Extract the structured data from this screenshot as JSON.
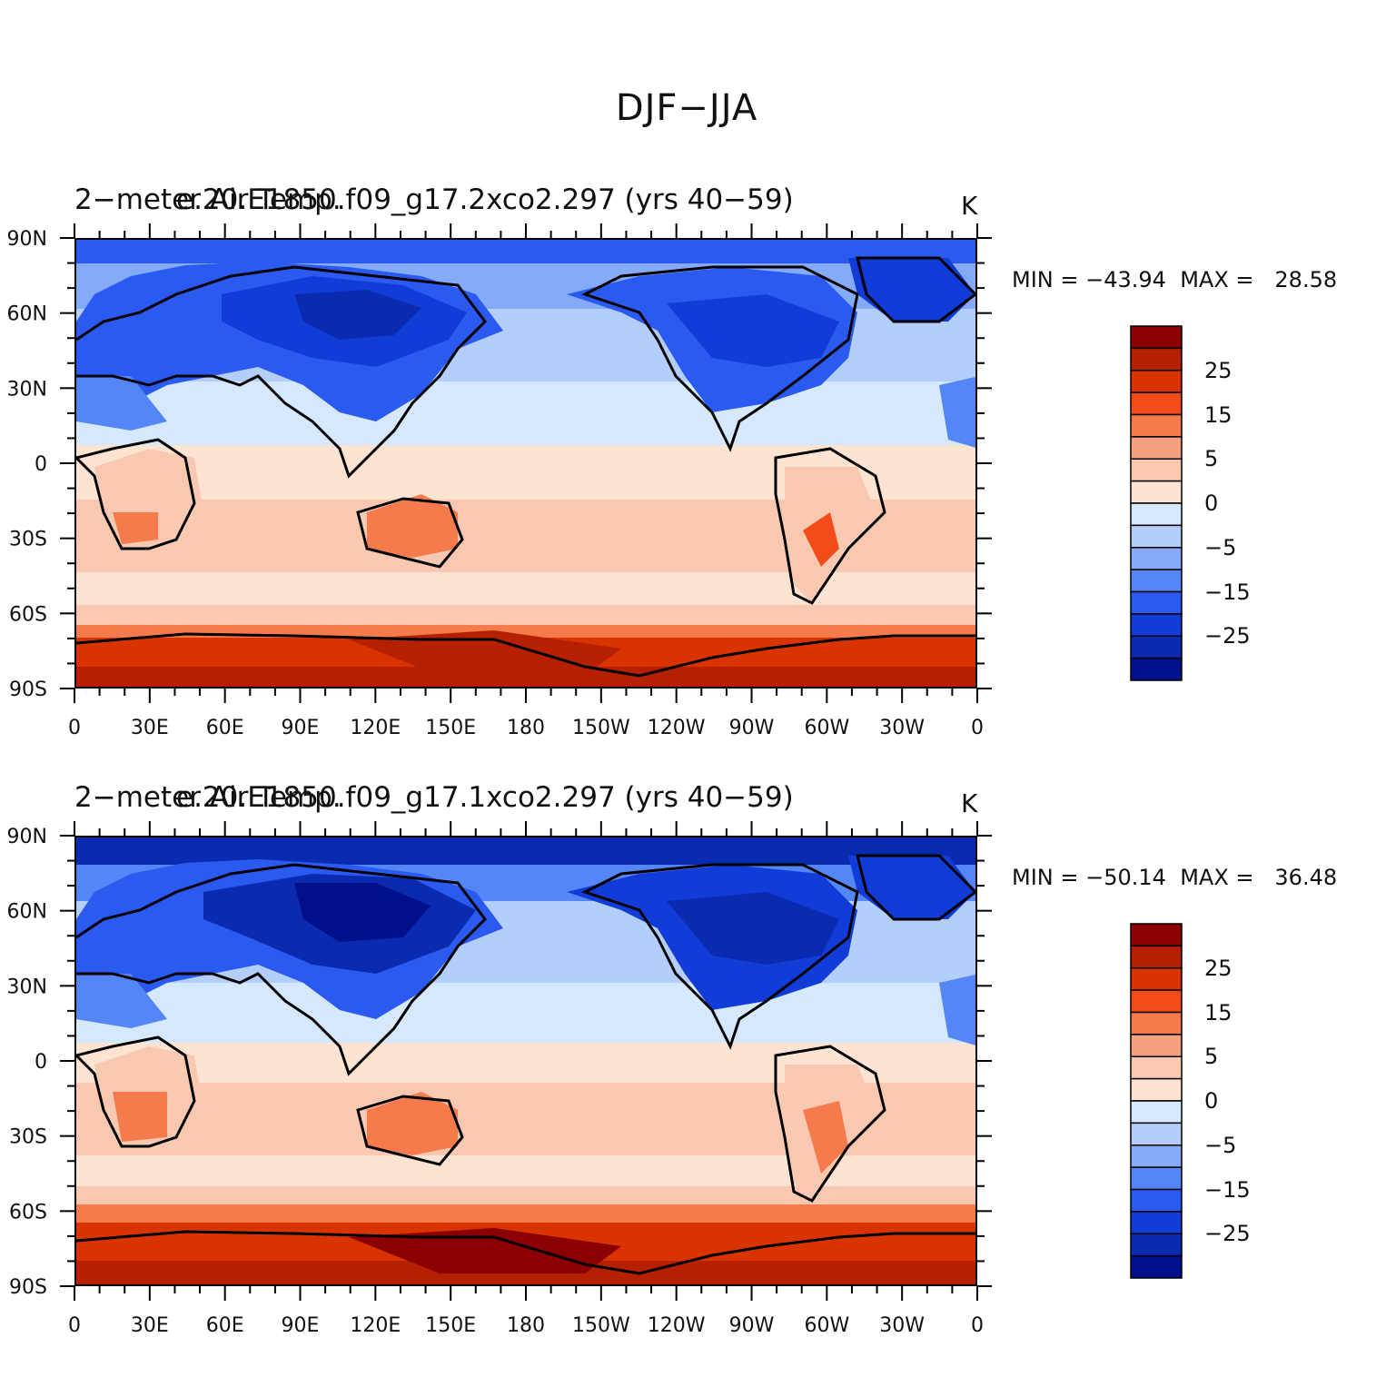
{
  "figure": {
    "title": "DJF−JJA"
  },
  "axes": {
    "lat_ticks": [
      "90N",
      "60N",
      "30N",
      "0",
      "30S",
      "60S",
      "90S"
    ],
    "lon_ticks": [
      "0",
      "30E",
      "60E",
      "90E",
      "120E",
      "150E",
      "180",
      "150W",
      "120W",
      "90W",
      "60W",
      "30W",
      "0"
    ]
  },
  "colorbar": {
    "levels": [
      "25",
      "15",
      "5",
      "0",
      "−5",
      "−15",
      "−25"
    ],
    "colors_top_to_bottom": [
      "#8b0000",
      "#b52000",
      "#d93300",
      "#f24c1a",
      "#f57a4c",
      "#f5a07e",
      "#f9c8b0",
      "#fde4d2",
      "#d6e8fd",
      "#b4cefb",
      "#85aaf7",
      "#5586f5",
      "#2a5af0",
      "#123cd8",
      "#0a2ab0",
      "#000f8a"
    ]
  },
  "panels": [
    {
      "title_variable": "2−meter Air Temp.",
      "title_case": "e.20.E1850.f09_g17.2xco2.297 (yrs 40−59)",
      "units": "K",
      "min_label": "MIN = ",
      "min_value": "−43.94",
      "max_label": "MAX = ",
      "max_value": "28.58"
    },
    {
      "title_variable": "2−meter Air Temp.",
      "title_case": "e.20.E1850.f09_g17.1xco2.297 (yrs 40−59)",
      "units": "K",
      "min_label": "MIN = ",
      "min_value": "−50.14",
      "max_label": "MAX = ",
      "max_value": "36.48"
    }
  ]
}
